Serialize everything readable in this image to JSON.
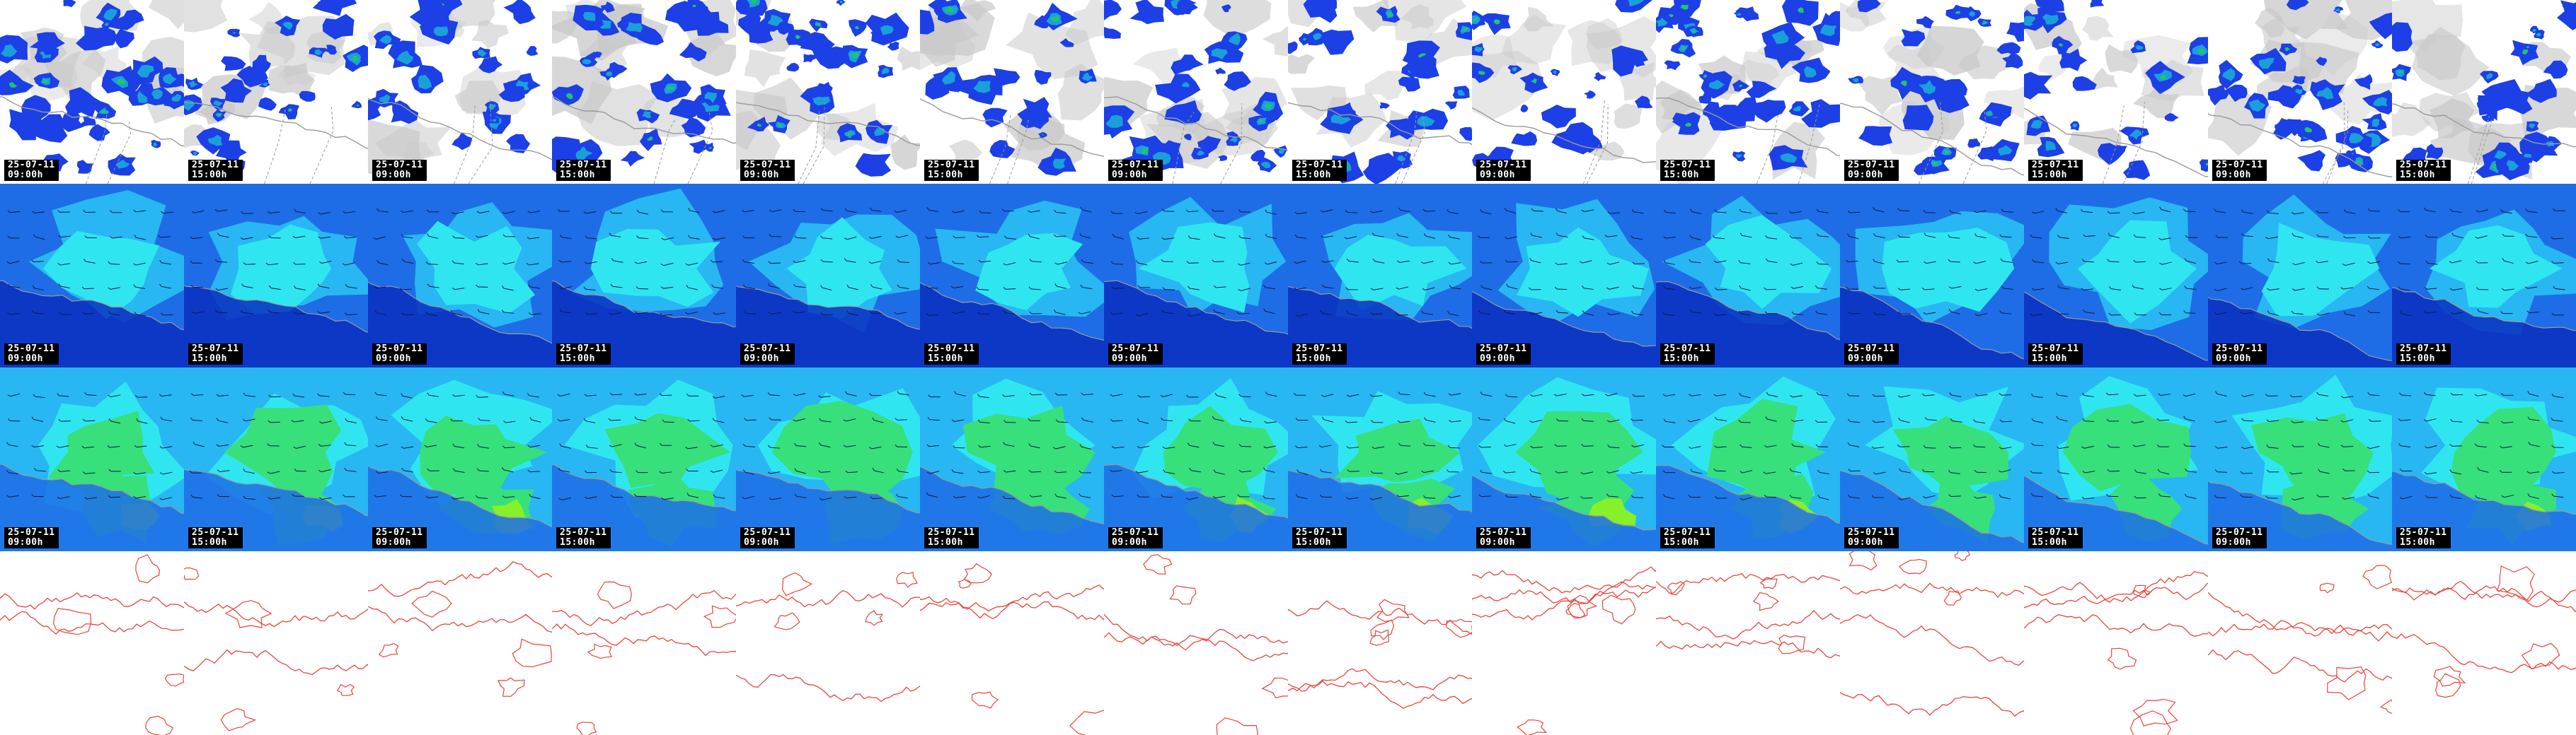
{
  "rows": [
    {
      "id": "precip",
      "label": "",
      "background": "#ffffff"
    },
    {
      "id": "field-a",
      "label": "",
      "background": "#1f6ee8"
    },
    {
      "id": "field-b",
      "label": "",
      "background": "#27a6f0"
    },
    {
      "id": "contour",
      "label": "",
      "background": "#ffffff"
    }
  ],
  "timestamps": [
    {
      "date": "25-07-11",
      "time": "09:00h"
    },
    {
      "date": "25-07-11",
      "time": "15:00h"
    },
    {
      "date": "25-07-11",
      "time": "09:00h"
    },
    {
      "date": "25-07-11",
      "time": "15:00h"
    },
    {
      "date": "25-07-11",
      "time": "09:00h"
    },
    {
      "date": "25-07-11",
      "time": "15:00h"
    },
    {
      "date": "25-07-11",
      "time": "09:00h"
    },
    {
      "date": "25-07-11",
      "time": "15:00h"
    },
    {
      "date": "25-07-11",
      "time": "09:00h"
    },
    {
      "date": "25-07-11",
      "time": "15:00h"
    },
    {
      "date": "25-07-11",
      "time": "09:00h"
    },
    {
      "date": "25-07-11",
      "time": "15:00h"
    },
    {
      "date": "25-07-11",
      "time": "09:00h"
    },
    {
      "date": "25-07-11",
      "time": "15:00h"
    }
  ],
  "colors": {
    "coast": "#9a9a9a",
    "cloud": "#c8c8c8",
    "precip_light": "#1c3fe6",
    "precip_mid": "#1aa0d8",
    "precip_high": "#22c46a",
    "field_deep": "#0a2fbf",
    "field_mid": "#1e6de6",
    "field_light": "#28b7f2",
    "field_cyan": "#2fe6f0",
    "field_green": "#37e07a",
    "field_lime": "#86f02a",
    "contour": "#e8453c"
  }
}
